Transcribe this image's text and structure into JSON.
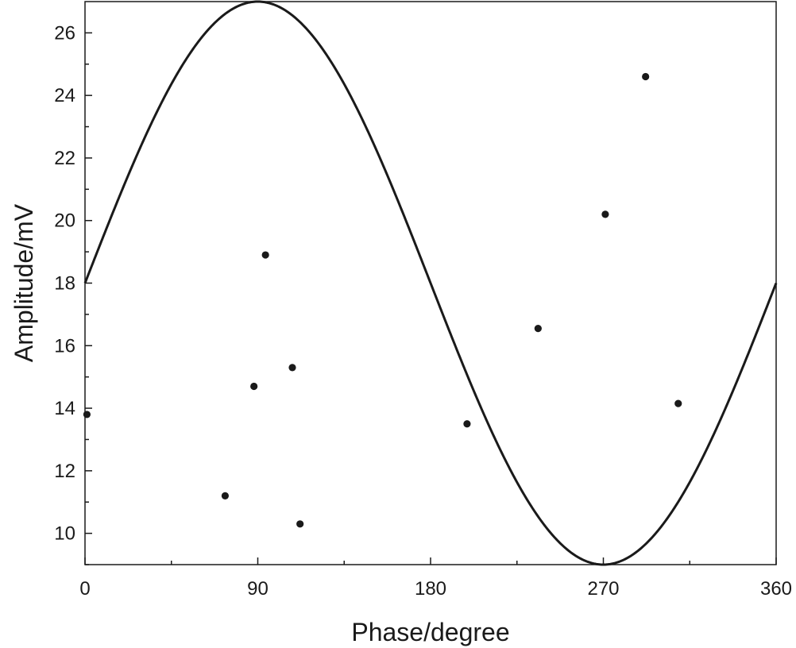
{
  "chart_data": {
    "type": "scatter",
    "title": "",
    "xlabel": "Phase/degree",
    "ylabel": "Amplitude/mV",
    "xlim": [
      0,
      360
    ],
    "ylim": [
      9,
      27
    ],
    "x_ticks": [
      0,
      90,
      180,
      270,
      360
    ],
    "x_minor_ticks": [
      45,
      135,
      225,
      315
    ],
    "y_ticks": [
      10,
      12,
      14,
      16,
      18,
      20,
      22,
      24,
      26
    ],
    "y_minor_ticks": [
      9,
      11,
      13,
      15,
      17,
      19,
      21,
      23,
      25
    ],
    "grid": false,
    "legend": "none",
    "colors": {
      "line": "#1a1a1a",
      "points": "#1a1a1a"
    },
    "curve": {
      "type": "sine",
      "offset": 18,
      "amplitude": 9,
      "period_deg": 360,
      "phase_deg": 0
    },
    "points": [
      {
        "x": 1,
        "y": 13.8
      },
      {
        "x": 73,
        "y": 11.2
      },
      {
        "x": 88,
        "y": 14.7
      },
      {
        "x": 94,
        "y": 18.9
      },
      {
        "x": 108,
        "y": 15.3
      },
      {
        "x": 112,
        "y": 10.3
      },
      {
        "x": 199,
        "y": 13.5
      },
      {
        "x": 236,
        "y": 16.55
      },
      {
        "x": 271,
        "y": 20.2
      },
      {
        "x": 292,
        "y": 24.6
      },
      {
        "x": 309,
        "y": 14.15
      }
    ]
  }
}
